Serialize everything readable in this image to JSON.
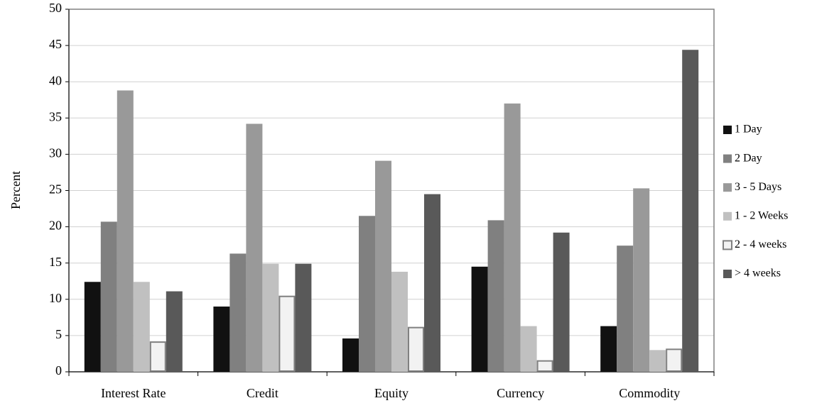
{
  "chart_data": {
    "type": "bar",
    "y_label": "Percent",
    "categories": [
      "Interest Rate",
      "Credit",
      "Equity",
      "Currency",
      "Commodity"
    ],
    "series": [
      {
        "name": "1 Day",
        "color": "#111111",
        "values": [
          12.4,
          9.0,
          4.6,
          14.5,
          6.3
        ]
      },
      {
        "name": "2 Day",
        "color": "#808080",
        "values": [
          20.7,
          16.3,
          21.5,
          20.9,
          17.4
        ]
      },
      {
        "name": "3 - 5 Days",
        "color": "#999999",
        "values": [
          38.8,
          34.2,
          29.1,
          37.0,
          25.3
        ]
      },
      {
        "name": "1 - 2 Weeks",
        "color": "#c0c0c0",
        "values": [
          12.4,
          14.9,
          13.8,
          6.3,
          3.0
        ]
      },
      {
        "name": "2 - 4 weeks",
        "color": "#f2f2f2",
        "edgecolor": "#808080",
        "values": [
          4.1,
          10.4,
          6.1,
          1.5,
          3.1
        ]
      },
      {
        "name": "> 4 weeks",
        "color": "#595959",
        "values": [
          11.1,
          14.9,
          24.5,
          19.2,
          44.4
        ]
      }
    ],
    "ylim": [
      0,
      50
    ],
    "yticks": [
      0,
      5,
      10,
      15,
      20,
      25,
      30,
      35,
      40,
      45,
      50
    ],
    "grid": true,
    "legend": "right"
  }
}
